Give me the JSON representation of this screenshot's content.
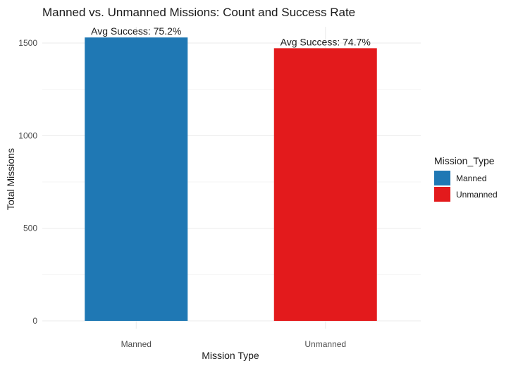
{
  "chart_data": {
    "type": "bar",
    "title": "Manned vs. Unmanned Missions: Count and Success Rate",
    "xlabel": "Mission Type",
    "ylabel": "Total Missions",
    "categories": [
      "Manned",
      "Unmanned"
    ],
    "values": [
      1530,
      1472
    ],
    "bar_labels": [
      "Avg Success: 75.2%",
      "Avg Success: 74.7%"
    ],
    "colors": [
      "#1f78b4",
      "#e31a1c"
    ],
    "ylim": [
      0,
      1580
    ],
    "yticks": [
      0,
      500,
      1000,
      1500
    ],
    "ytick_labels": [
      "0",
      "500",
      "1000",
      "1500"
    ],
    "grid": true,
    "legend": {
      "title": "Mission_Type",
      "placement": "right",
      "entries": [
        "Manned",
        "Unmanned"
      ]
    }
  }
}
